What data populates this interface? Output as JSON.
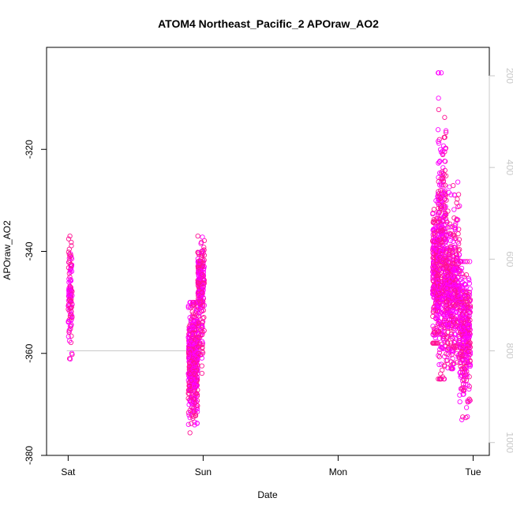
{
  "chart_data": {
    "type": "scatter",
    "title": "ATOM4 Northeast_Pacific_2 APOraw_AO2",
    "xlabel": "Date",
    "ylabel": "APOraw_AO2",
    "x_ticks": [
      {
        "label": "Sat",
        "value": 0.0
      },
      {
        "label": "Sun",
        "value": 1.0
      },
      {
        "label": "Mon",
        "value": 2.0
      },
      {
        "label": "Tue",
        "value": 3.0
      }
    ],
    "xlim": [
      -0.16,
      3.12
    ],
    "ylim": [
      -380,
      -300
    ],
    "y_ticks": [
      -380,
      -360,
      -340,
      -320
    ],
    "y2_ticks": [
      200,
      400,
      600,
      800,
      1000
    ],
    "y2lim": [
      1028,
      138
    ],
    "grid": false,
    "colors": {
      "points": "#ff1493",
      "points_alt": "#ff00ff",
      "line": "#c8c8c8",
      "axis": "#000000",
      "right_axis": "#c8c8c8"
    },
    "series": [
      {
        "type": "points",
        "clusters": [
          {
            "x": [
              0.0,
              0.03
            ],
            "y_center": -348,
            "y_range": [
              -364,
              -337
            ],
            "n": 110
          },
          {
            "x": [
              0.89,
              0.96
            ],
            "y_center": -362,
            "y_range": [
              -378,
              -350
            ],
            "n": 450
          },
          {
            "x": [
              0.96,
              1.0
            ],
            "y_center": -353,
            "y_range": [
              -365,
              -339
            ],
            "n": 80
          },
          {
            "x": [
              0.96,
              1.01
            ],
            "y_center": -345,
            "y_range": [
              -356,
              -337
            ],
            "n": 180
          },
          {
            "x": [
              2.7,
              2.74
            ],
            "y_center": -345,
            "y_range": [
              -358,
              -325
            ],
            "n": 250
          },
          {
            "x": [
              2.74,
              2.8
            ],
            "y_center": -340,
            "y_range": [
              -365,
              -305
            ],
            "n": 400
          },
          {
            "x": [
              2.8,
              2.9
            ],
            "y_center": -348,
            "y_range": [
              -363,
              -325
            ],
            "n": 450
          },
          {
            "x": [
              2.9,
              2.98
            ],
            "y_center": -356,
            "y_range": [
              -373,
              -342
            ],
            "n": 350
          }
        ]
      },
      {
        "type": "line",
        "axis": "right",
        "points": [
          [
            -0.01,
            800
          ],
          [
            0.02,
            800
          ],
          [
            0.03,
            800
          ],
          [
            0.04,
            800
          ],
          [
            0.05,
            800
          ],
          [
            0.06,
            800
          ],
          [
            0.07,
            800
          ],
          [
            0.08,
            800
          ],
          [
            0.1,
            800
          ],
          [
            0.15,
            800
          ],
          [
            0.2,
            800
          ],
          [
            0.3,
            800
          ],
          [
            0.4,
            800
          ],
          [
            0.5,
            800
          ],
          [
            0.6,
            800
          ],
          [
            0.7,
            800
          ],
          [
            0.8,
            800
          ],
          [
            0.9,
            800
          ],
          [
            1.0,
            800
          ],
          [
            1.0,
            800
          ]
        ]
      }
    ]
  }
}
